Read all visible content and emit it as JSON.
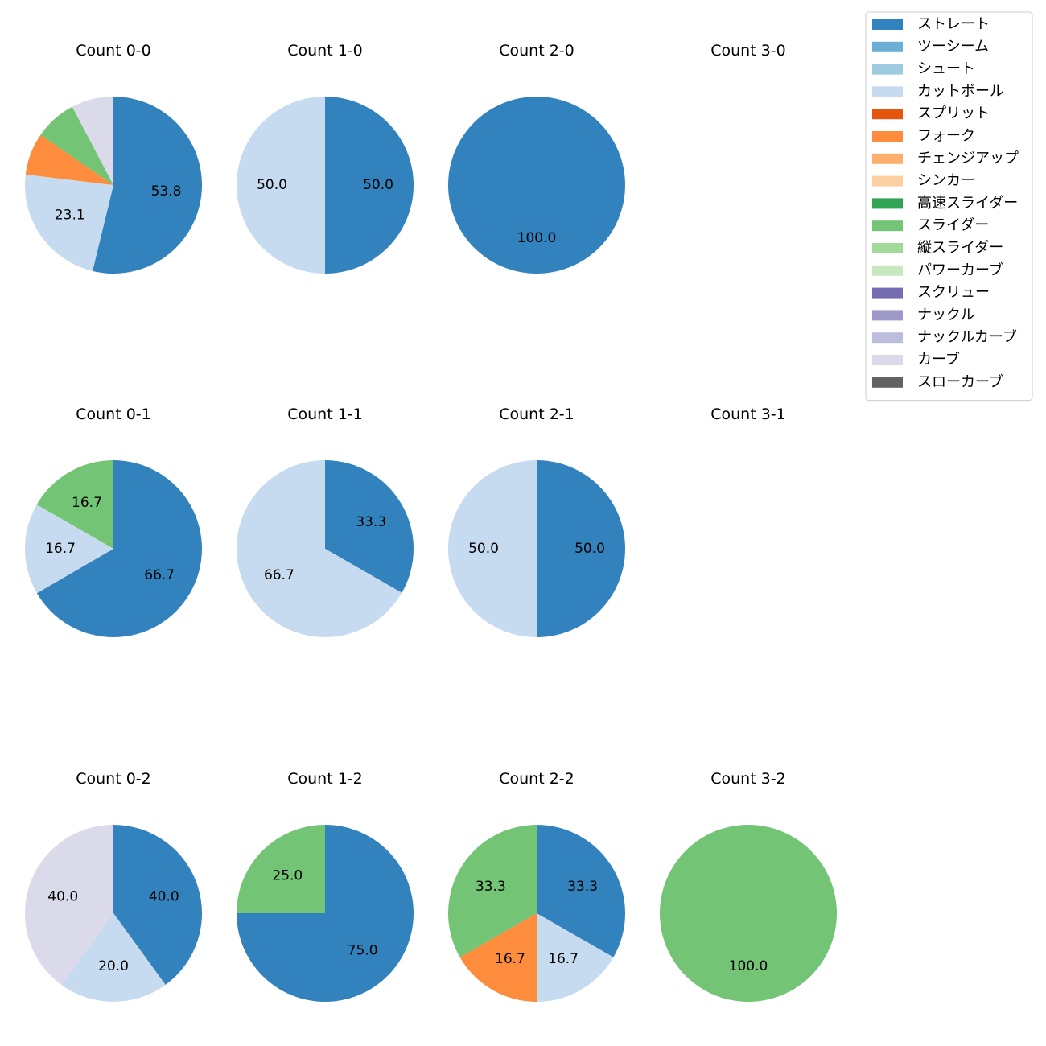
{
  "chart_data": {
    "type": "pie",
    "legend": {
      "placement": "top-right",
      "entries": [
        {
          "name": "ストレート",
          "color": "#3182bd"
        },
        {
          "name": "ツーシーム",
          "color": "#6baed6"
        },
        {
          "name": "シュート",
          "color": "#9ecae1"
        },
        {
          "name": "カットボール",
          "color": "#c6dbef"
        },
        {
          "name": "スプリット",
          "color": "#e6550d"
        },
        {
          "name": "フォーク",
          "color": "#fd8d3c"
        },
        {
          "name": "チェンジアップ",
          "color": "#fdae6b"
        },
        {
          "name": "シンカー",
          "color": "#fdd0a2"
        },
        {
          "name": "高速スライダー",
          "color": "#31a354"
        },
        {
          "name": "スライダー",
          "color": "#74c476"
        },
        {
          "name": "縦スライダー",
          "color": "#a1d99b"
        },
        {
          "name": "パワーカーブ",
          "color": "#c7e9c0"
        },
        {
          "name": "スクリュー",
          "color": "#756bb1"
        },
        {
          "name": "ナックル",
          "color": "#9e9ac8"
        },
        {
          "name": "ナックルカーブ",
          "color": "#bcbddc"
        },
        {
          "name": "カーブ",
          "color": "#dadaeb"
        },
        {
          "name": "スローカーブ",
          "color": "#636363"
        }
      ]
    },
    "pies": [
      {
        "title": "Count 0-0",
        "slices": [
          {
            "pitch": "ストレート",
            "value": 53.8,
            "label": "53.8"
          },
          {
            "pitch": "カットボール",
            "value": 23.1,
            "label": "23.1"
          },
          {
            "pitch": "フォーク",
            "value": 7.7,
            "label": ""
          },
          {
            "pitch": "スライダー",
            "value": 7.7,
            "label": ""
          },
          {
            "pitch": "カーブ",
            "value": 7.7,
            "label": ""
          }
        ]
      },
      {
        "title": "Count 1-0",
        "slices": [
          {
            "pitch": "ストレート",
            "value": 50.0,
            "label": "50.0"
          },
          {
            "pitch": "カットボール",
            "value": 50.0,
            "label": "50.0"
          }
        ]
      },
      {
        "title": "Count 2-0",
        "slices": [
          {
            "pitch": "ストレート",
            "value": 100.0,
            "label": "100.0"
          }
        ]
      },
      {
        "title": "Count 3-0",
        "slices": []
      },
      {
        "title": "Count 0-1",
        "slices": [
          {
            "pitch": "ストレート",
            "value": 66.7,
            "label": "66.7"
          },
          {
            "pitch": "カットボール",
            "value": 16.7,
            "label": "16.7"
          },
          {
            "pitch": "スライダー",
            "value": 16.7,
            "label": "16.7"
          }
        ]
      },
      {
        "title": "Count 1-1",
        "slices": [
          {
            "pitch": "ストレート",
            "value": 33.3,
            "label": "33.3"
          },
          {
            "pitch": "カットボール",
            "value": 66.7,
            "label": "66.7"
          }
        ]
      },
      {
        "title": "Count 2-1",
        "slices": [
          {
            "pitch": "ストレート",
            "value": 50.0,
            "label": "50.0"
          },
          {
            "pitch": "カットボール",
            "value": 50.0,
            "label": "50.0"
          }
        ]
      },
      {
        "title": "Count 3-1",
        "slices": []
      },
      {
        "title": "Count 0-2",
        "slices": [
          {
            "pitch": "ストレート",
            "value": 40.0,
            "label": "40.0"
          },
          {
            "pitch": "カットボール",
            "value": 20.0,
            "label": "20.0"
          },
          {
            "pitch": "カーブ",
            "value": 40.0,
            "label": "40.0"
          }
        ]
      },
      {
        "title": "Count 1-2",
        "slices": [
          {
            "pitch": "ストレート",
            "value": 75.0,
            "label": "75.0"
          },
          {
            "pitch": "スライダー",
            "value": 25.0,
            "label": "25.0"
          }
        ]
      },
      {
        "title": "Count 2-2",
        "slices": [
          {
            "pitch": "ストレート",
            "value": 33.3,
            "label": "33.3"
          },
          {
            "pitch": "カットボール",
            "value": 16.7,
            "label": "16.7"
          },
          {
            "pitch": "フォーク",
            "value": 16.7,
            "label": "16.7"
          },
          {
            "pitch": "スライダー",
            "value": 33.3,
            "label": "33.3"
          }
        ]
      },
      {
        "title": "Count 3-2",
        "slices": [
          {
            "pitch": "スライダー",
            "value": 100.0,
            "label": "100.0"
          }
        ]
      }
    ]
  }
}
